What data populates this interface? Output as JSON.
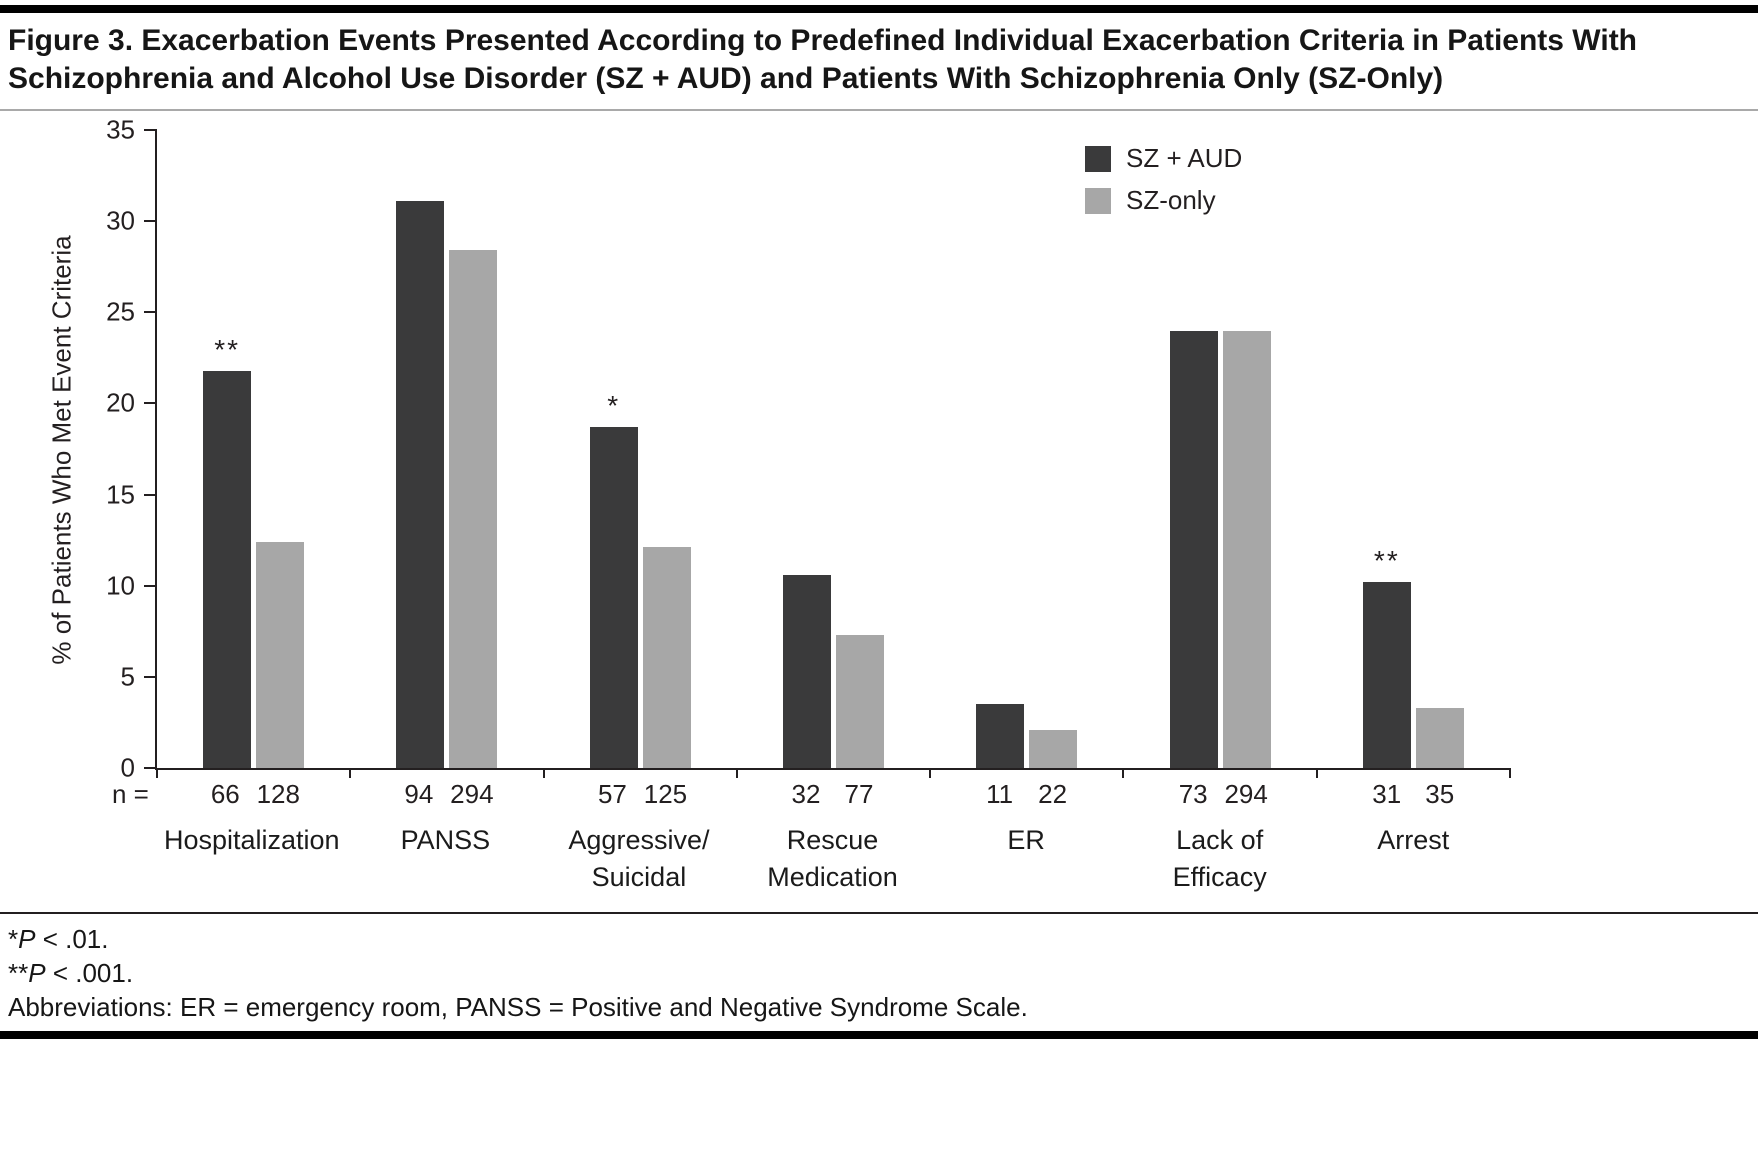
{
  "figure": {
    "title": "Figure 3. Exacerbation Events Presented According to Predefined Individual Exacerbation Criteria in Patients With Schizophrenia and Alcohol Use Disorder (SZ + AUD) and Patients With Schizophrenia Only (SZ-Only)"
  },
  "chart_data": {
    "type": "bar",
    "title": "Figure 3. Exacerbation Events Presented According to Predefined Individual Exacerbation Criteria in Patients With Schizophrenia and Alcohol Use Disorder (SZ + AUD) and Patients With Schizophrenia Only (SZ-Only)",
    "ylabel": "% of Patients Who Met Event Criteria",
    "xlabel": "",
    "ylim": [
      0,
      35
    ],
    "yticks": [
      0,
      5,
      10,
      15,
      20,
      25,
      30,
      35
    ],
    "grid": false,
    "legend_position": "top-right",
    "categories": [
      "Hospitalization",
      "PANSS",
      "Aggressive/Suicidal",
      "Rescue Medication",
      "ER",
      "Lack of Efficacy",
      "Arrest"
    ],
    "category_label_lines": [
      [
        "Hospitalization"
      ],
      [
        "PANSS"
      ],
      [
        "Aggressive/",
        "Suicidal"
      ],
      [
        "Rescue",
        "Medication"
      ],
      [
        "ER"
      ],
      [
        "Lack of",
        "Efficacy"
      ],
      [
        "Arrest"
      ]
    ],
    "series": [
      {
        "name": "SZ + AUD",
        "color": "#3a3a3b",
        "values": [
          21.8,
          31.1,
          18.7,
          10.6,
          3.5,
          24,
          10.2
        ]
      },
      {
        "name": "SZ-only",
        "color": "#a7a7a7",
        "values": [
          12.4,
          28.4,
          12.1,
          7.3,
          2.1,
          24,
          3.3
        ]
      }
    ],
    "significance": [
      "**",
      "",
      "*",
      "",
      "",
      "",
      "**"
    ],
    "n_label": "n =",
    "n_values": [
      [
        "66",
        "128"
      ],
      [
        "94",
        "294"
      ],
      [
        "57",
        "125"
      ],
      [
        "32",
        "77"
      ],
      [
        "11",
        "22"
      ],
      [
        "73",
        "294"
      ],
      [
        "31",
        "35"
      ]
    ],
    "axis_color": "#231f20"
  },
  "footnotes": {
    "note1": {
      "stars": "*",
      "p": "P",
      "rest": " < .01."
    },
    "note2": {
      "stars": "**",
      "p": "P",
      "rest": " < .001."
    },
    "abbreviations": "Abbreviations: ER = emergency room, PANSS = Positive and Negative Syndrome Scale."
  }
}
